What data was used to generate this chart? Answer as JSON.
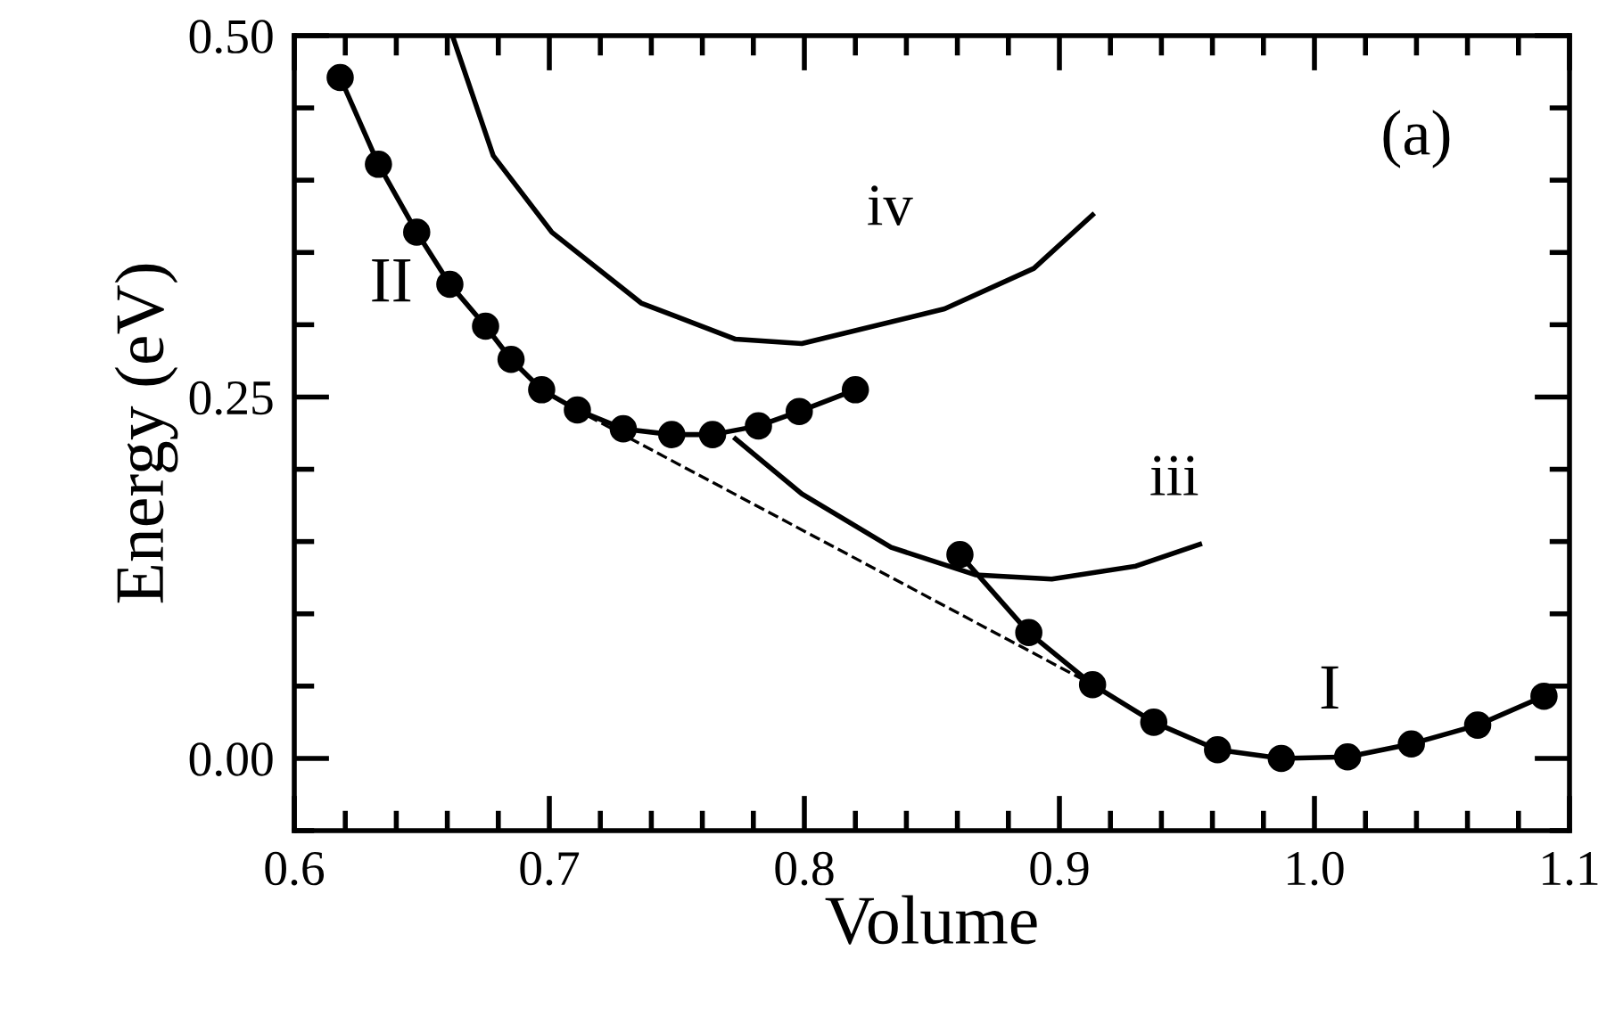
{
  "chart_data": {
    "type": "line",
    "xlabel": "Volume",
    "ylabel": "Energy (eV)",
    "xlim": [
      0.6,
      1.1
    ],
    "ylim": [
      -0.05,
      0.5
    ],
    "xticks": [
      0.6,
      {
        "value": 0.62,
        "label": null
      },
      {
        "value": 0.64,
        "label": null
      },
      {
        "value": 0.66,
        "label": null
      },
      {
        "value": 0.68,
        "label": null
      },
      0.7,
      {
        "value": 0.72,
        "label": null
      },
      {
        "value": 0.74,
        "label": null
      },
      {
        "value": 0.76,
        "label": null
      },
      {
        "value": 0.78,
        "label": null
      },
      0.8,
      {
        "value": 0.82,
        "label": null
      },
      {
        "value": 0.84,
        "label": null
      },
      {
        "value": 0.86,
        "label": null
      },
      {
        "value": 0.88,
        "label": null
      },
      0.9,
      {
        "value": 0.92,
        "label": null
      },
      {
        "value": 0.94,
        "label": null
      },
      {
        "value": 0.96,
        "label": null
      },
      {
        "value": 0.98,
        "label": null
      },
      {
        "value": 1.0,
        "label": "1.0"
      },
      {
        "value": 1.02,
        "label": null
      },
      {
        "value": 1.04,
        "label": null
      },
      {
        "value": 1.06,
        "label": null
      },
      {
        "value": 1.08,
        "label": null
      },
      1.1
    ],
    "yticks": [
      {
        "value": -0.05,
        "label": null
      },
      {
        "value": 0,
        "label": "0.00"
      },
      {
        "value": 0.05,
        "label": null
      },
      {
        "value": 0.1,
        "label": null
      },
      {
        "value": 0.15,
        "label": null
      },
      {
        "value": 0.2,
        "label": null
      },
      0.25,
      {
        "value": 0.3,
        "label": null
      },
      {
        "value": 0.35,
        "label": null
      },
      {
        "value": 0.4,
        "label": null
      },
      {
        "value": 0.45,
        "label": null
      },
      {
        "value": 0.5,
        "label": "0.50"
      }
    ],
    "grid": false,
    "legend": false,
    "series": [
      {
        "name": "II",
        "color": "#000000",
        "marker": "circle",
        "line_style": "solid",
        "x": [
          0.618,
          0.633,
          0.648,
          0.661,
          0.675,
          0.685,
          0.697,
          0.711,
          0.729,
          0.748,
          0.764,
          0.782,
          0.798,
          0.82
        ],
        "values": [
          0.471,
          0.411,
          0.364,
          0.328,
          0.299,
          0.276,
          0.255,
          0.241,
          0.228,
          0.224,
          0.224,
          0.23,
          0.24,
          0.255
        ]
      },
      {
        "name": "I",
        "color": "#000000",
        "marker": "circle",
        "line_style": "solid",
        "x": [
          0.861,
          0.888,
          0.913,
          0.937,
          0.962,
          0.987,
          1.013,
          1.038,
          1.064,
          1.09
        ],
        "values": [
          0.141,
          0.087,
          0.051,
          0.025,
          0.006,
          0.0,
          0.001,
          0.01,
          0.023,
          0.043
        ]
      },
      {
        "name": "iii",
        "color": "#000000",
        "marker": "none",
        "line_style": "solid",
        "x": [
          0.773,
          0.799,
          0.834,
          0.867,
          0.897,
          0.93,
          0.955
        ],
        "values": [
          0.221,
          0.183,
          0.146,
          0.127,
          0.124,
          0.133,
          0.148
        ]
      },
      {
        "name": "iv",
        "color": "#000000",
        "marker": "none",
        "line_style": "solid",
        "x": [
          0.662,
          0.678,
          0.701,
          0.736,
          0.773,
          0.799,
          0.855,
          0.89,
          0.913
        ],
        "values": [
          0.5,
          0.417,
          0.364,
          0.315,
          0.29,
          0.287,
          0.311,
          0.339,
          0.376
        ]
      },
      {
        "color": "#000000",
        "marker": "none",
        "line_style": "dashed",
        "x": [
          0.715,
          0.913
        ],
        "values": [
          0.237,
          0.051
        ]
      }
    ],
    "annotations": [
      "(a)"
    ]
  }
}
